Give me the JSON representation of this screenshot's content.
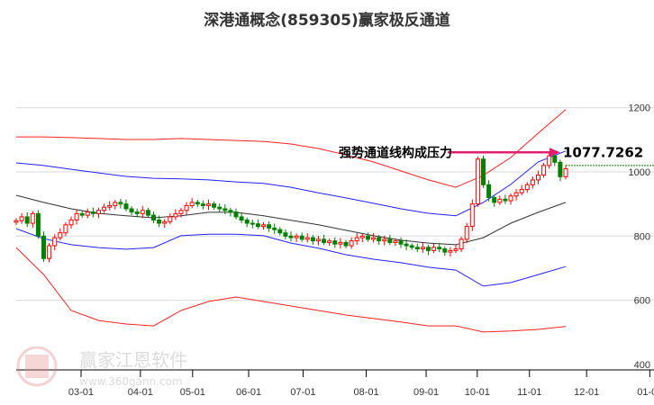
{
  "chart_data": {
    "type": "candlestick",
    "title": "深港通概念(859305)赢家极反通道",
    "ylim": [
      400,
      1200
    ],
    "yticks": [
      "1200",
      "1000",
      "800",
      "600",
      "400"
    ],
    "ytick_values": [
      1200,
      1000,
      800,
      600,
      400
    ],
    "xticks": [
      "03-01",
      "04-01",
      "05-01",
      "06-01",
      "07-01",
      "08-01",
      "09-01",
      "10-01",
      "11-01",
      "12-01",
      "01-01"
    ],
    "xtick_candle_index": [
      11.8,
      22.6,
      32.1,
      42.3,
      52.2,
      63.7,
      74.6,
      83.9,
      93.4,
      103.8,
      115.3
    ],
    "candle_count_span": 116,
    "closes": [
      848,
      860,
      840,
      870,
      800,
      730,
      770,
      795,
      810,
      835,
      850,
      870,
      865,
      875,
      870,
      880,
      890,
      895,
      905,
      900,
      885,
      875,
      870,
      880,
      865,
      850,
      840,
      845,
      860,
      870,
      880,
      895,
      905,
      900,
      895,
      900,
      890,
      885,
      880,
      875,
      860,
      850,
      840,
      838,
      830,
      835,
      825,
      820,
      810,
      800,
      795,
      800,
      790,
      795,
      785,
      790,
      780,
      785,
      775,
      780,
      770,
      785,
      795,
      800,
      790,
      795,
      785,
      790,
      780,
      785,
      775,
      770,
      765,
      760,
      765,
      755,
      765,
      760,
      750,
      755,
      760,
      790,
      830,
      900,
      1040,
      960,
      920,
      905,
      915,
      910,
      925,
      935,
      945,
      960,
      975,
      990,
      1020,
      1050,
      1030,
      985,
      1010
    ],
    "band_sample_step": 5,
    "bands": [
      {
        "name": "upper-outer",
        "color": "#ff2020",
        "values": [
          1109,
          1109,
          1107,
          1104,
          1101,
          1101,
          1104,
          1101,
          1098,
          1095,
          1087,
          1073,
          1053,
          1031,
          1003,
          975,
          952,
          989,
          1045,
          1121,
          1194
        ]
      },
      {
        "name": "upper-inner",
        "color": "#2020ff",
        "values": [
          1028,
          1020,
          1008,
          997,
          986,
          980,
          978,
          975,
          969,
          964,
          952,
          935,
          919,
          902,
          885,
          871,
          863,
          905,
          961,
          1031,
          1065
        ]
      },
      {
        "name": "middle",
        "color": "#333333",
        "values": [
          927,
          905,
          885,
          871,
          863,
          857,
          863,
          874,
          874,
          863,
          849,
          835,
          818,
          801,
          787,
          778,
          773,
          795,
          840,
          874,
          905
        ]
      },
      {
        "name": "lower-inner",
        "color": "#2020ff",
        "values": [
          823,
          792,
          773,
          764,
          759,
          764,
          801,
          806,
          806,
          801,
          778,
          762,
          742,
          728,
          717,
          703,
          694,
          644,
          655,
          680,
          705
        ]
      },
      {
        "name": "lower-outer",
        "color": "#ff2020",
        "values": [
          764,
          680,
          568,
          537,
          526,
          520,
          568,
          596,
          610,
          596,
          582,
          568,
          554,
          543,
          532,
          520,
          520,
          501,
          504,
          509,
          518
        ]
      }
    ],
    "last_price_line": 1020,
    "annotation": {
      "text": "强势通道线构成压力",
      "value_label": "1077.7262",
      "value": 1077.7262
    },
    "colors": {
      "up": "#ff0000",
      "down": "#008000",
      "arrow": "#e0206e",
      "grid": "#d8d8d8"
    }
  },
  "watermark": {
    "name": "赢家江恩软件",
    "url": "www.360gann.com",
    "logo": "江恩赢家"
  }
}
